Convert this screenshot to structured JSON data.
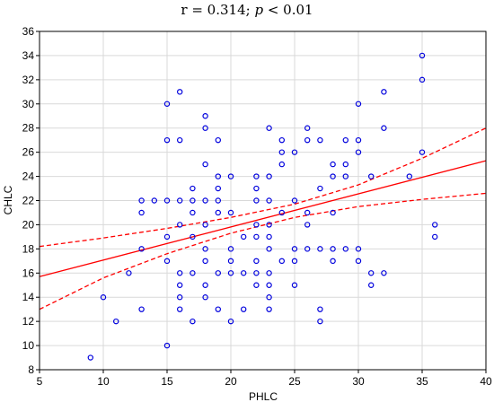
{
  "chart_data": {
    "type": "scatter",
    "title": {
      "prefix": "r = 0.314; ",
      "pvar": "p",
      "suffix": " < 0.01"
    },
    "xlabel": "PHLC",
    "ylabel": "CHLC",
    "xlim": [
      5,
      40
    ],
    "ylim": [
      8,
      36
    ],
    "xticks": [
      5,
      10,
      15,
      20,
      25,
      30,
      35,
      40
    ],
    "yticks": [
      8,
      10,
      12,
      14,
      16,
      18,
      20,
      22,
      24,
      26,
      28,
      30,
      32,
      34,
      36
    ],
    "grid": true,
    "colors": {
      "points": "#0000dd",
      "fit": "#ff0000",
      "grid": "#d9d9d9",
      "axis": "#000000"
    },
    "points": [
      [
        9,
        9
      ],
      [
        10,
        14
      ],
      [
        11,
        12
      ],
      [
        12,
        16
      ],
      [
        13,
        22
      ],
      [
        13,
        21
      ],
      [
        13,
        18
      ],
      [
        13,
        13
      ],
      [
        14,
        22
      ],
      [
        15,
        30
      ],
      [
        15,
        27
      ],
      [
        15,
        22
      ],
      [
        15,
        19
      ],
      [
        15,
        17
      ],
      [
        15,
        10
      ],
      [
        16,
        31
      ],
      [
        16,
        27
      ],
      [
        16,
        22
      ],
      [
        16,
        20
      ],
      [
        16,
        16
      ],
      [
        16,
        15
      ],
      [
        16,
        14
      ],
      [
        16,
        13
      ],
      [
        17,
        23
      ],
      [
        17,
        22
      ],
      [
        17,
        21
      ],
      [
        17,
        19
      ],
      [
        17,
        16
      ],
      [
        17,
        12
      ],
      [
        18,
        29
      ],
      [
        18,
        28
      ],
      [
        18,
        25
      ],
      [
        18,
        22
      ],
      [
        18,
        20
      ],
      [
        18,
        18
      ],
      [
        18,
        17
      ],
      [
        18,
        15
      ],
      [
        18,
        14
      ],
      [
        19,
        27
      ],
      [
        19,
        24
      ],
      [
        19,
        23
      ],
      [
        19,
        22
      ],
      [
        19,
        21
      ],
      [
        19,
        16
      ],
      [
        19,
        13
      ],
      [
        20,
        24
      ],
      [
        20,
        21
      ],
      [
        20,
        18
      ],
      [
        20,
        17
      ],
      [
        20,
        16
      ],
      [
        20,
        12
      ],
      [
        21,
        19
      ],
      [
        21,
        16
      ],
      [
        21,
        13
      ],
      [
        22,
        24
      ],
      [
        22,
        23
      ],
      [
        22,
        22
      ],
      [
        22,
        20
      ],
      [
        22,
        19
      ],
      [
        22,
        17
      ],
      [
        22,
        16
      ],
      [
        22,
        15
      ],
      [
        23,
        28
      ],
      [
        23,
        24
      ],
      [
        23,
        22
      ],
      [
        23,
        20
      ],
      [
        23,
        19
      ],
      [
        23,
        18
      ],
      [
        23,
        16
      ],
      [
        23,
        15
      ],
      [
        23,
        14
      ],
      [
        23,
        13
      ],
      [
        24,
        27
      ],
      [
        24,
        26
      ],
      [
        24,
        25
      ],
      [
        24,
        21
      ],
      [
        24,
        17
      ],
      [
        25,
        26
      ],
      [
        25,
        22
      ],
      [
        25,
        18
      ],
      [
        25,
        17
      ],
      [
        25,
        15
      ],
      [
        26,
        28
      ],
      [
        26,
        27
      ],
      [
        26,
        21
      ],
      [
        26,
        20
      ],
      [
        26,
        18
      ],
      [
        27,
        27
      ],
      [
        27,
        23
      ],
      [
        27,
        18
      ],
      [
        27,
        13
      ],
      [
        27,
        12
      ],
      [
        28,
        25
      ],
      [
        28,
        24
      ],
      [
        28,
        21
      ],
      [
        28,
        18
      ],
      [
        28,
        17
      ],
      [
        29,
        27
      ],
      [
        29,
        25
      ],
      [
        29,
        24
      ],
      [
        29,
        18
      ],
      [
        30,
        30
      ],
      [
        30,
        27
      ],
      [
        30,
        26
      ],
      [
        30,
        18
      ],
      [
        30,
        17
      ],
      [
        31,
        24
      ],
      [
        31,
        16
      ],
      [
        31,
        15
      ],
      [
        32,
        31
      ],
      [
        32,
        28
      ],
      [
        32,
        16
      ],
      [
        34,
        24
      ],
      [
        35,
        34
      ],
      [
        35,
        32
      ],
      [
        35,
        26
      ],
      [
        36,
        20
      ],
      [
        36,
        19
      ]
    ],
    "fit_line": {
      "x": [
        5,
        40
      ],
      "y": [
        15.7,
        25.3
      ]
    },
    "confidence_upper": {
      "x": [
        5,
        10,
        15,
        20,
        25,
        30,
        35,
        40
      ],
      "y": [
        18.2,
        18.9,
        19.7,
        20.6,
        21.7,
        23.3,
        25.5,
        28.0
      ]
    },
    "confidence_lower": {
      "x": [
        5,
        10,
        15,
        20,
        25,
        30,
        35,
        40
      ],
      "y": [
        13.0,
        15.6,
        17.6,
        19.3,
        20.6,
        21.5,
        22.1,
        22.6
      ]
    }
  }
}
